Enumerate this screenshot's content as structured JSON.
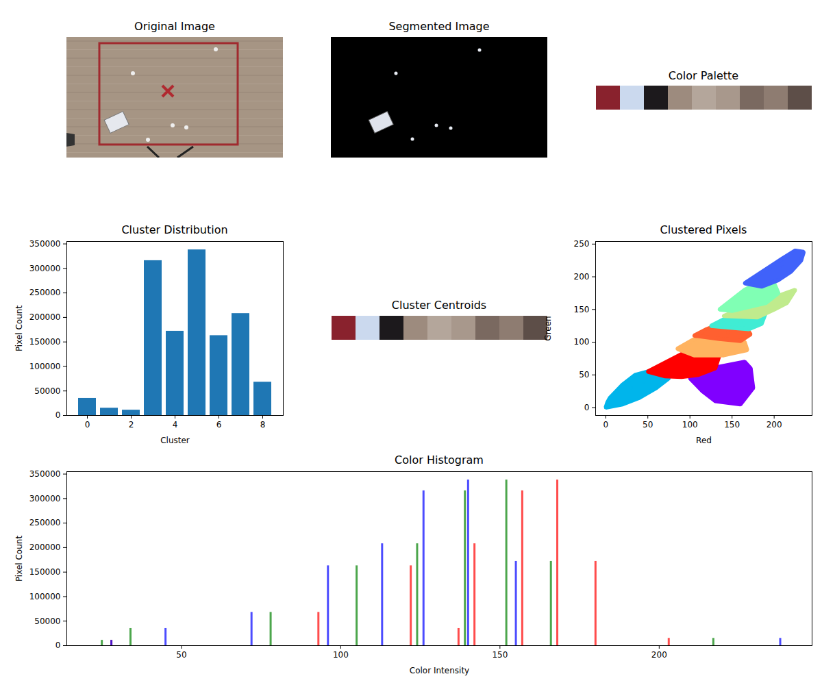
{
  "chart_data": [
    {
      "type": "image",
      "title": "Original Image"
    },
    {
      "type": "image",
      "title": "Segmented Image"
    },
    {
      "type": "palette",
      "title": "Color Palette",
      "colors": [
        "#89222d",
        "#cbd9ee",
        "#1c191c",
        "#9d8b7e",
        "#b4a69b",
        "#a8988c",
        "#7a6960",
        "#8e7c71",
        "#5d4e48"
      ]
    },
    {
      "type": "bar",
      "title": "Cluster Distribution",
      "xlabel": "Cluster",
      "ylabel": "Pixel Count",
      "categories": [
        0,
        1,
        2,
        3,
        4,
        5,
        6,
        7,
        8
      ],
      "values": [
        35000,
        15000,
        11000,
        316000,
        172000,
        338000,
        163000,
        208000,
        68000
      ],
      "color": "#1f77b4",
      "xticks": [
        0,
        2,
        4,
        6,
        8
      ],
      "ylim": [
        0,
        355000
      ],
      "yticks": [
        0,
        50000,
        100000,
        150000,
        200000,
        250000,
        300000,
        350000
      ]
    },
    {
      "type": "palette",
      "title": "Cluster Centroids",
      "colors": [
        "#89222d",
        "#cbd9ee",
        "#1c191c",
        "#9d8b7e",
        "#b4a69b",
        "#a8988c",
        "#7a6960",
        "#8e7c71",
        "#5d4e48"
      ]
    },
    {
      "type": "scatter",
      "title": "Clustered Pixels",
      "xlabel": "Red",
      "ylabel": "Green",
      "xlim": [
        -12,
        245
      ],
      "xticks": [
        0,
        50,
        100,
        150,
        200
      ],
      "ylim": [
        -12,
        254
      ],
      "yticks": [
        0,
        50,
        100,
        150,
        200,
        250
      ],
      "series": [
        {
          "color": "#8000ff",
          "x": [
            100,
            115,
            130,
            160,
            175,
            172,
            165,
            150,
            135,
            105,
            140,
            155
          ],
          "values": [
            45,
            25,
            10,
            5,
            30,
            60,
            70,
            65,
            60,
            55,
            35,
            45
          ]
        },
        {
          "color": "#00b5eb",
          "x": [
            0,
            5,
            20,
            40,
            60,
            75,
            70,
            50,
            35,
            20,
            5,
            2,
            30,
            45
          ],
          "values": [
            0,
            2,
            5,
            15,
            30,
            45,
            55,
            55,
            50,
            35,
            15,
            8,
            30,
            40
          ]
        },
        {
          "color": "#ff0000",
          "x": [
            50,
            70,
            90,
            110,
            128,
            135,
            130,
            110,
            90,
            70,
            100
          ],
          "values": [
            55,
            65,
            80,
            95,
            92,
            80,
            60,
            50,
            47,
            48,
            70
          ]
        },
        {
          "color": "#ffb360",
          "x": [
            85,
            100,
            115,
            150,
            165,
            168,
            140,
            120,
            105,
            130
          ],
          "values": [
            90,
            100,
            112,
            110,
            100,
            88,
            80,
            82,
            80,
            95
          ]
        },
        {
          "color": "#ff6030",
          "x": [
            105,
            120,
            140,
            165,
            172,
            160,
            135,
            145
          ],
          "values": [
            110,
            120,
            130,
            125,
            112,
            102,
            105,
            115
          ]
        },
        {
          "color": "#40ecd4",
          "x": [
            125,
            145,
            165,
            190,
            185,
            170,
            150,
            160
          ],
          "values": [
            125,
            138,
            148,
            145,
            128,
            120,
            122,
            132
          ]
        },
        {
          "color": "#c0eb8d",
          "x": [
            140,
            160,
            185,
            215,
            225,
            200,
            180,
            160,
            190
          ],
          "values": [
            140,
            150,
            158,
            160,
            180,
            150,
            138,
            140,
            150
          ]
        },
        {
          "color": "#80ffb4",
          "x": [
            135,
            150,
            165,
            180,
            200,
            205,
            190,
            170,
            150,
            175
          ],
          "values": [
            150,
            165,
            180,
            190,
            190,
            175,
            160,
            155,
            148,
            172
          ]
        },
        {
          "color": "#4062fa",
          "x": [
            165,
            180,
            195,
            210,
            225,
            235,
            232,
            220,
            205,
            185,
            210
          ],
          "values": [
            190,
            200,
            215,
            228,
            240,
            238,
            225,
            208,
            195,
            185,
            215
          ]
        }
      ]
    },
    {
      "type": "bar",
      "title": "Color Histogram",
      "xlabel": "Color Intensity",
      "ylabel": "Pixel Count",
      "xlim": [
        14,
        248
      ],
      "xticks": [
        50,
        100,
        150,
        200
      ],
      "ylim": [
        0,
        355000
      ],
      "yticks": [
        0,
        50000,
        100000,
        150000,
        200000,
        250000,
        300000,
        350000
      ],
      "series": [
        {
          "color": "#ff0000",
          "x": [
            137,
            203,
            28,
            157,
            180,
            168,
            122,
            142,
            93
          ],
          "values": [
            35000,
            15000,
            11000,
            316000,
            172000,
            338000,
            163000,
            208000,
            68000
          ]
        },
        {
          "color": "#008000",
          "x": [
            34,
            217,
            25,
            139,
            166,
            152,
            105,
            124,
            78
          ],
          "values": [
            35000,
            15000,
            11000,
            316000,
            172000,
            338000,
            163000,
            208000,
            68000
          ]
        },
        {
          "color": "#0000ff",
          "x": [
            45,
            238,
            28,
            126,
            155,
            140,
            96,
            113,
            72
          ],
          "values": [
            35000,
            15000,
            11000,
            316000,
            172000,
            338000,
            163000,
            208000,
            68000
          ]
        }
      ]
    }
  ]
}
